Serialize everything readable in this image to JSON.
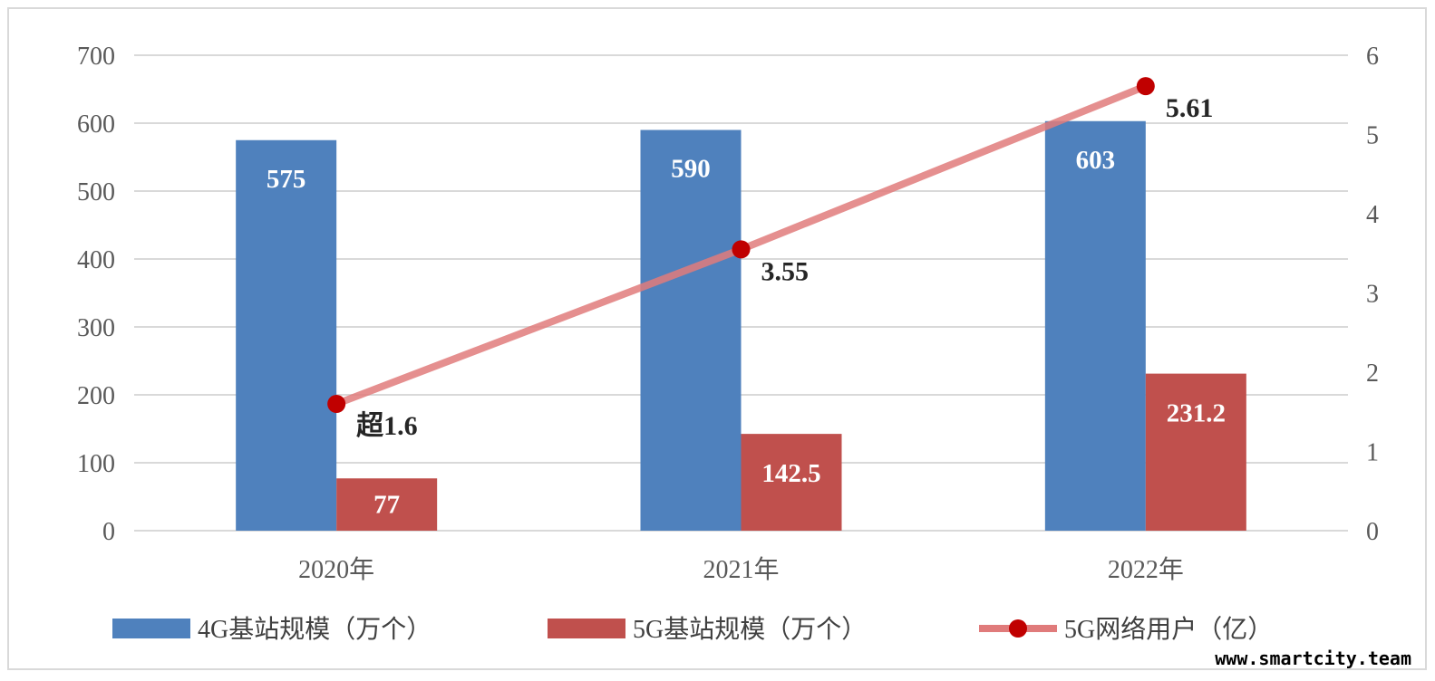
{
  "chart_data": {
    "type": "bar",
    "categories": [
      "2020年",
      "2021年",
      "2022年"
    ],
    "series": [
      {
        "name": "4G基站规模（万个）",
        "kind": "bar",
        "axis": "left",
        "color": "#4f81bd",
        "values": [
          575,
          590,
          603
        ],
        "labels": [
          "575",
          "590",
          "603"
        ]
      },
      {
        "name": "5G基站规模（万个）",
        "kind": "bar",
        "axis": "left",
        "color": "#c0504d",
        "values": [
          77,
          142.5,
          231.2
        ],
        "labels": [
          "77",
          "142.5",
          "231.2"
        ]
      },
      {
        "name": "5G网络用户（亿）",
        "kind": "line",
        "axis": "right",
        "color": "#e07b7b",
        "marker_color": "#c00000",
        "values": [
          1.6,
          3.55,
          5.61
        ],
        "labels": [
          "超1.6",
          "3.55",
          "5.61"
        ]
      }
    ],
    "y_left": {
      "min": 0,
      "max": 700,
      "ticks": [
        0,
        100,
        200,
        300,
        400,
        500,
        600,
        700
      ]
    },
    "y_right": {
      "min": 0,
      "max": 6,
      "ticks": [
        0,
        1,
        2,
        3,
        4,
        5,
        6
      ]
    },
    "grid": true,
    "legend_position": "bottom"
  },
  "watermark": "www.smartcity.team"
}
